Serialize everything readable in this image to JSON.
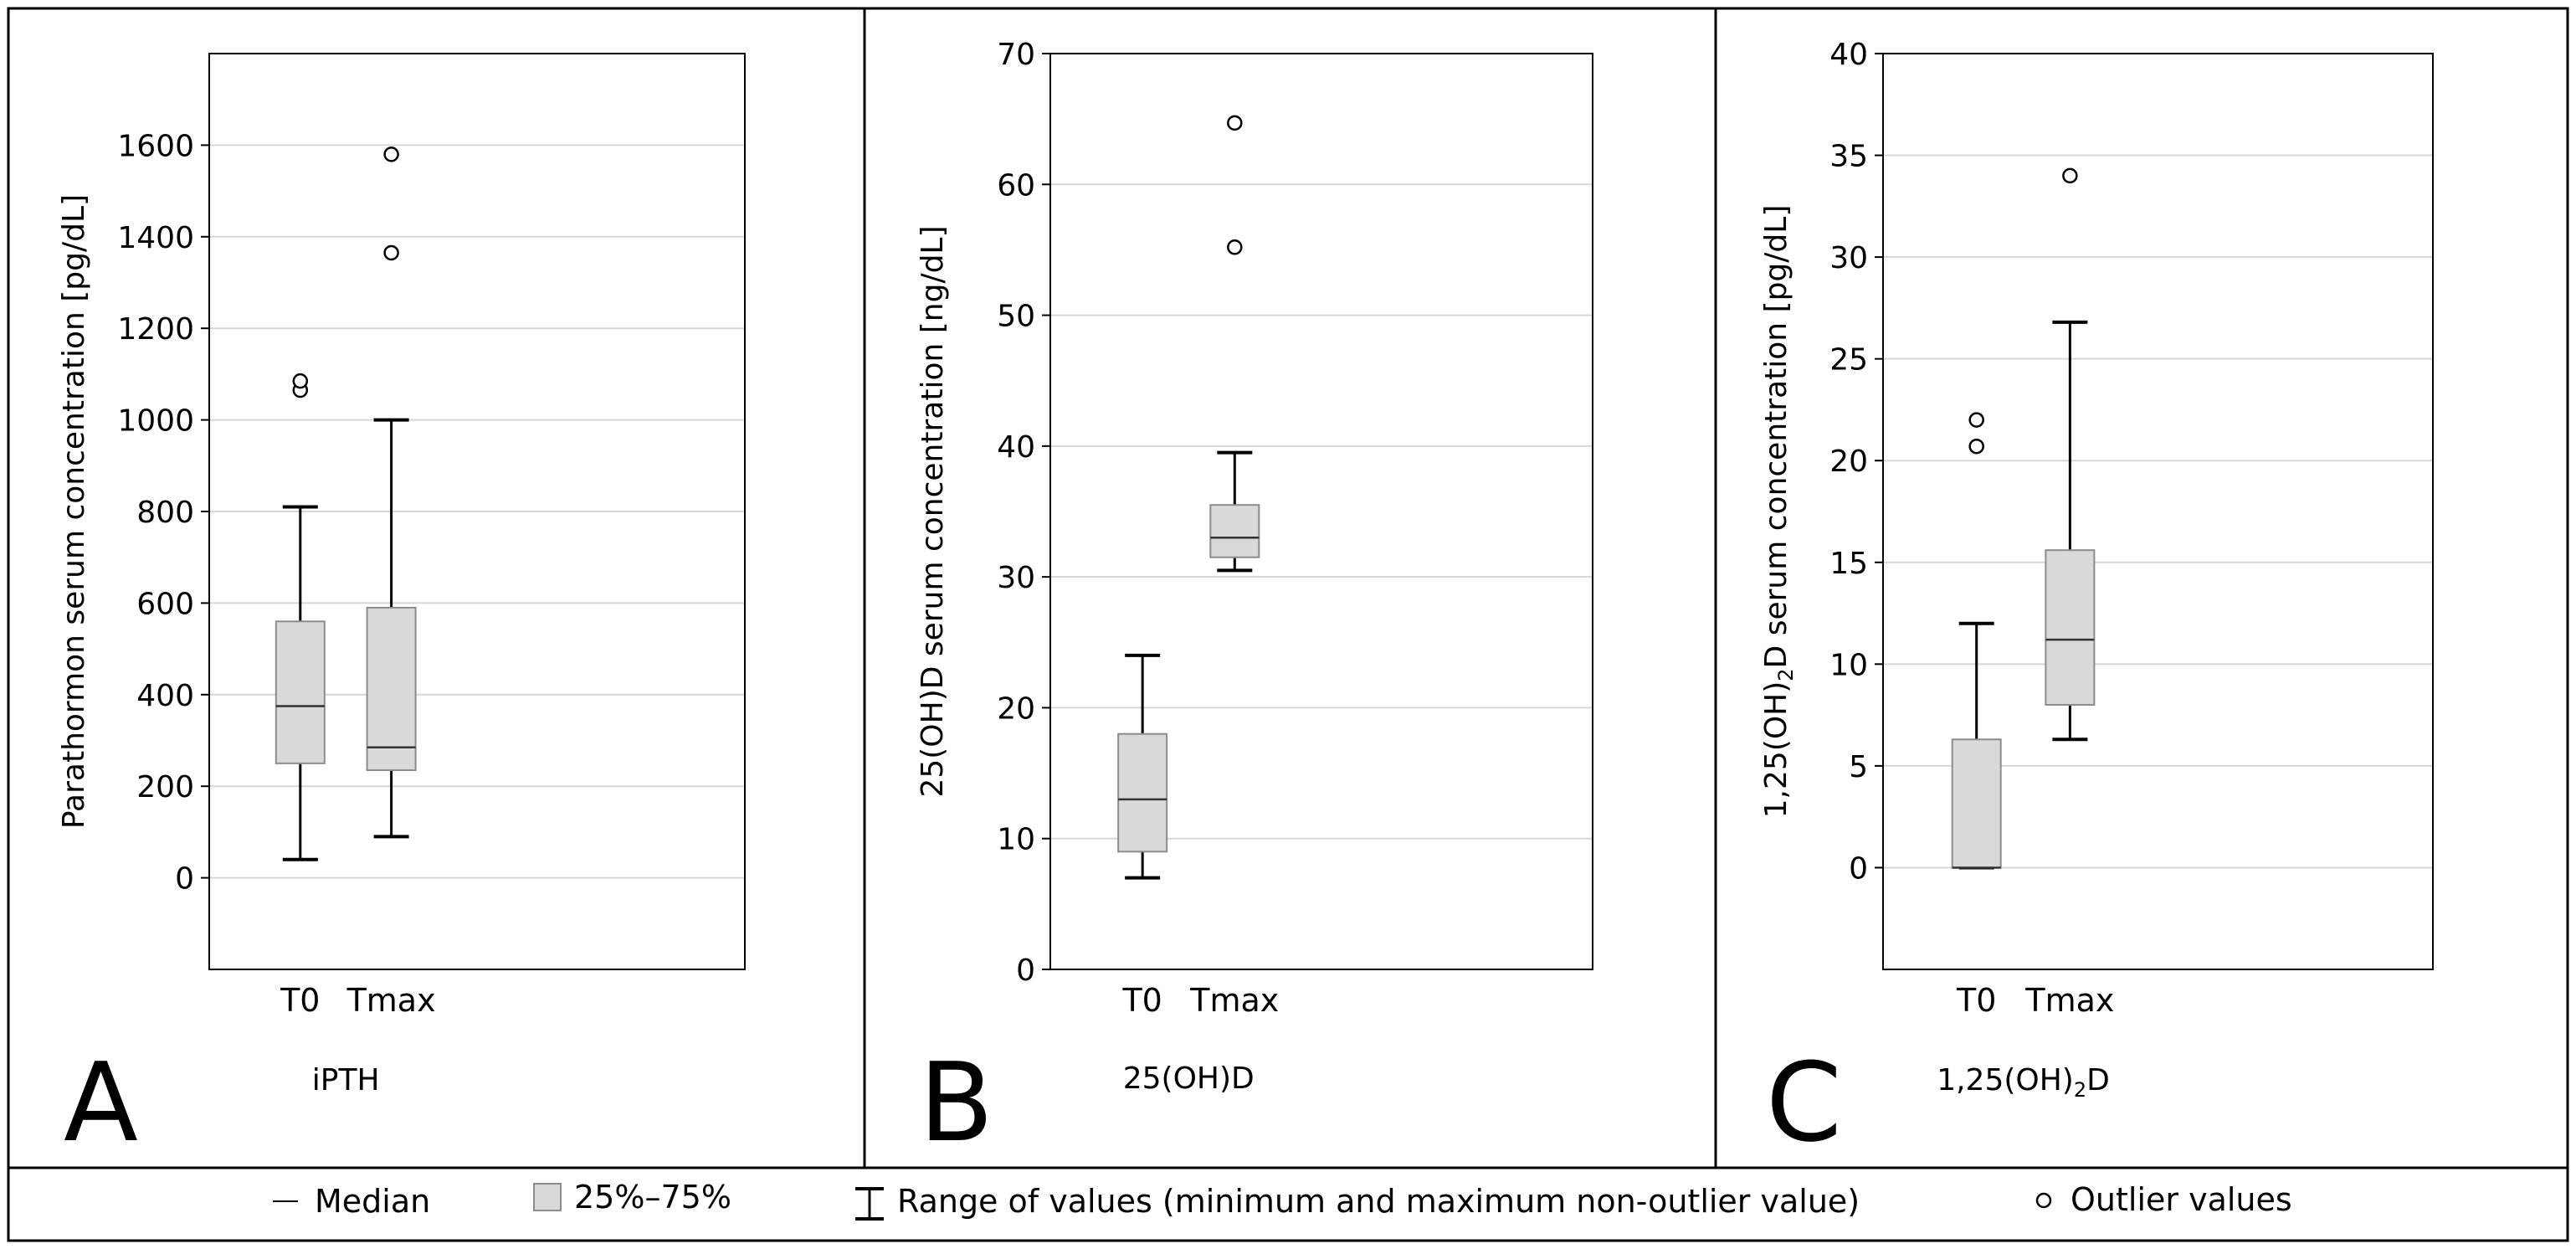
{
  "chart_data": [
    {
      "type": "box",
      "panel_letter": "A",
      "title": "iPTH",
      "ylabel": "Parathormon serum concentration [pg/dL]",
      "ylim": [
        -200,
        1800
      ],
      "yticks": [
        0,
        200,
        400,
        600,
        800,
        1000,
        1200,
        1400,
        1600
      ],
      "categories": [
        "T0",
        "Tmax"
      ],
      "boxes": [
        {
          "category": "T0",
          "min": 40,
          "q1": 250,
          "median": 375,
          "q3": 560,
          "max": 810,
          "outliers": [
            1065,
            1085
          ]
        },
        {
          "category": "Tmax",
          "min": 90,
          "q1": 235,
          "median": 285,
          "q3": 590,
          "max": 1000,
          "outliers": [
            1365,
            1580
          ]
        }
      ]
    },
    {
      "type": "box",
      "panel_letter": "B",
      "title": "25(OH)D",
      "ylabel": "25(OH)D serum concentration [ng/dL]",
      "ylim": [
        0,
        70
      ],
      "yticks": [
        0,
        10,
        20,
        30,
        40,
        50,
        60,
        70
      ],
      "categories": [
        "T0",
        "Tmax"
      ],
      "boxes": [
        {
          "category": "T0",
          "min": 7,
          "q1": 9,
          "median": 13,
          "q3": 18,
          "max": 24,
          "outliers": []
        },
        {
          "category": "Tmax",
          "min": 30.5,
          "q1": 31.5,
          "median": 33,
          "q3": 35.5,
          "max": 39.5,
          "outliers": [
            55.2,
            64.7
          ]
        }
      ]
    },
    {
      "type": "box",
      "panel_letter": "C",
      "title": "1,25(OH)",
      "title_sub": "2",
      "title_end": "D",
      "ylabel": "1,25(OH)",
      "ylabel_sub": "2",
      "ylabel_end": "D serum concentration [pg/dL]",
      "ylim": [
        -5,
        40
      ],
      "yticks": [
        0,
        5,
        10,
        15,
        20,
        25,
        30,
        35,
        40
      ],
      "categories": [
        "T0",
        "Tmax"
      ],
      "boxes": [
        {
          "category": "T0",
          "min": 0,
          "q1": 0,
          "median": 0,
          "q3": 6.3,
          "max": 12,
          "outliers": [
            20.7,
            22
          ]
        },
        {
          "category": "Tmax",
          "min": 6.3,
          "q1": 8,
          "median": 11.2,
          "q3": 15.6,
          "max": 26.8,
          "outliers": [
            34
          ]
        }
      ]
    }
  ],
  "legend": {
    "median": "Median",
    "iqr": "25%–75%",
    "range": "Range of values (minimum and maximum non-outlier value)",
    "outliers": "Outlier values"
  },
  "colors": {
    "box_fill": "#d9d9d9",
    "box_stroke": "#8c8c8c",
    "grid": "#d6d6d6",
    "whisker": "#000000"
  }
}
